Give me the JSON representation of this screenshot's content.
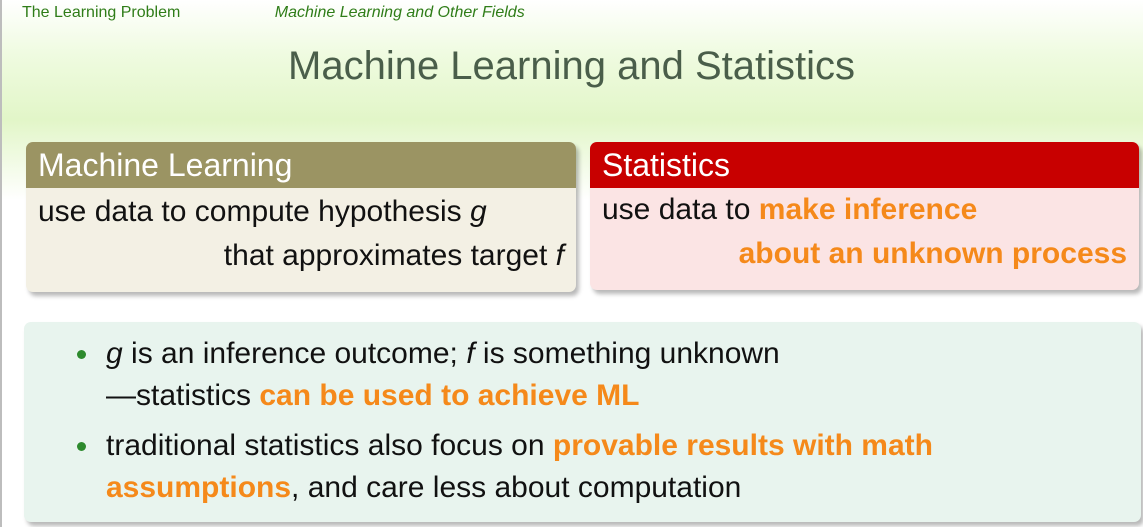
{
  "nav": {
    "chapter": "The Learning Problem",
    "section": "Machine Learning and Other Fields"
  },
  "title": "Machine Learning and Statistics",
  "ml_block": {
    "heading": "Machine Learning",
    "line1_text": "use data to compute hypothesis ",
    "line1_var": "g",
    "line2_text": "that approximates target ",
    "line2_var": "f"
  },
  "stats_block": {
    "heading": "Statistics",
    "line1_text": "use data to ",
    "line1_emph": "make inference",
    "line2_emph": "about an unknown process"
  },
  "notes": {
    "item1_var_g": "g",
    "item1_part1": " is an inference outcome; ",
    "item1_var_f": "f",
    "item1_part2": " is something unknown",
    "item1_line2_text": "—statistics ",
    "item1_line2_emph": "can be used to achieve ML",
    "item2_part1": "traditional statistics also focus on ",
    "item2_emph1": "provable results with math",
    "item2_emph2": "assumptions",
    "item2_part2": ", and care less about computation"
  },
  "colors": {
    "nav_green": "#2f7d18",
    "title_gray": "#4a5e4a",
    "ml_header": "#9b9463",
    "stats_header": "#c80000",
    "emphasis_orange": "#f5891a",
    "bullet_green": "#2d8a2d"
  }
}
